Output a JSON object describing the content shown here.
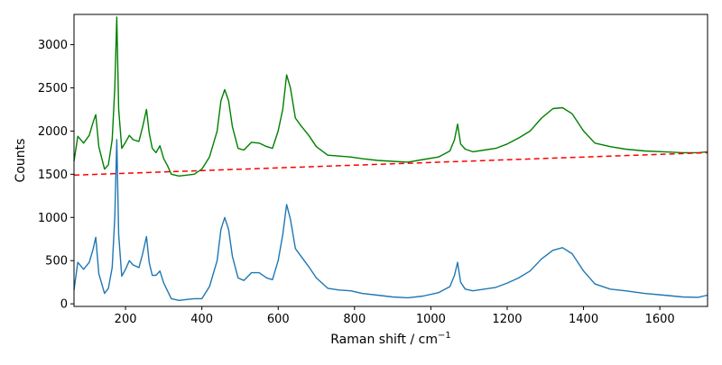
{
  "chart_data": {
    "type": "line",
    "title": "",
    "xlabel": "Raman shift / cm",
    "xlabel_superscript": "−1",
    "ylabel": "Counts",
    "xlim": [
      65,
      1725
    ],
    "ylim": [
      -30,
      3350
    ],
    "grid": false,
    "legend": "none",
    "x_ticks": [
      200,
      400,
      600,
      800,
      1000,
      1200,
      1400,
      1600
    ],
    "y_ticks": [
      0,
      500,
      1000,
      1500,
      2000,
      2500,
      3000
    ],
    "series": [
      {
        "role": "raw spectrum",
        "color": "#008000",
        "style": "solid",
        "x": [
          65,
          75,
          90,
          105,
          115,
          122,
          130,
          145,
          155,
          165,
          172,
          177,
          182,
          190,
          200,
          210,
          220,
          235,
          245,
          255,
          262,
          270,
          280,
          290,
          300,
          310,
          320,
          340,
          360,
          380,
          400,
          420,
          440,
          450,
          460,
          470,
          480,
          495,
          510,
          530,
          550,
          570,
          585,
          600,
          612,
          622,
          632,
          645,
          660,
          680,
          700,
          730,
          760,
          790,
          820,
          860,
          900,
          940,
          980,
          1020,
          1050,
          1062,
          1070,
          1078,
          1090,
          1110,
          1140,
          1170,
          1200,
          1230,
          1260,
          1290,
          1320,
          1345,
          1370,
          1400,
          1430,
          1470,
          1510,
          1560,
          1610,
          1660,
          1700,
          1725
        ],
        "y": [
          1650,
          1940,
          1860,
          1950,
          2100,
          2190,
          1820,
          1560,
          1610,
          1900,
          2500,
          3320,
          2250,
          1800,
          1870,
          1950,
          1900,
          1880,
          2050,
          2250,
          1980,
          1800,
          1750,
          1830,
          1680,
          1600,
          1500,
          1480,
          1490,
          1500,
          1560,
          1700,
          2000,
          2350,
          2480,
          2350,
          2050,
          1800,
          1780,
          1870,
          1860,
          1820,
          1800,
          2000,
          2250,
          2650,
          2500,
          2150,
          2060,
          1950,
          1820,
          1720,
          1710,
          1700,
          1680,
          1660,
          1650,
          1640,
          1670,
          1700,
          1770,
          1900,
          2080,
          1850,
          1790,
          1760,
          1780,
          1800,
          1850,
          1920,
          2000,
          2150,
          2260,
          2270,
          2200,
          2000,
          1860,
          1820,
          1790,
          1770,
          1760,
          1750,
          1750,
          1760
        ]
      },
      {
        "role": "baseline fit",
        "color": "#ff0000",
        "style": "dashed",
        "x": [
          65,
          1725
        ],
        "y": [
          1490,
          1750
        ]
      },
      {
        "role": "baseline-corrected spectrum",
        "color": "#1f77b4",
        "style": "solid",
        "x": [
          65,
          75,
          90,
          105,
          115,
          122,
          130,
          145,
          155,
          165,
          172,
          177,
          182,
          190,
          200,
          210,
          220,
          235,
          245,
          255,
          262,
          270,
          280,
          290,
          300,
          310,
          320,
          340,
          360,
          380,
          400,
          420,
          440,
          450,
          460,
          470,
          480,
          495,
          510,
          530,
          550,
          570,
          585,
          600,
          612,
          622,
          632,
          645,
          660,
          680,
          700,
          730,
          760,
          790,
          820,
          860,
          900,
          940,
          980,
          1020,
          1050,
          1062,
          1070,
          1078,
          1090,
          1110,
          1140,
          1170,
          1200,
          1230,
          1260,
          1290,
          1320,
          1345,
          1370,
          1400,
          1430,
          1470,
          1510,
          1560,
          1610,
          1660,
          1700,
          1725
        ],
        "y": [
          160,
          480,
          400,
          480,
          630,
          770,
          350,
          120,
          180,
          420,
          1000,
          1900,
          800,
          320,
          400,
          500,
          450,
          420,
          580,
          780,
          480,
          330,
          330,
          380,
          240,
          150,
          60,
          40,
          50,
          60,
          60,
          200,
          500,
          860,
          1000,
          860,
          550,
          300,
          270,
          360,
          360,
          300,
          280,
          500,
          800,
          1150,
          980,
          640,
          550,
          430,
          300,
          180,
          160,
          150,
          120,
          100,
          80,
          70,
          90,
          130,
          200,
          330,
          480,
          250,
          170,
          150,
          170,
          190,
          240,
          300,
          380,
          520,
          620,
          650,
          580,
          380,
          230,
          170,
          150,
          120,
          100,
          80,
          75,
          100
        ]
      }
    ]
  }
}
